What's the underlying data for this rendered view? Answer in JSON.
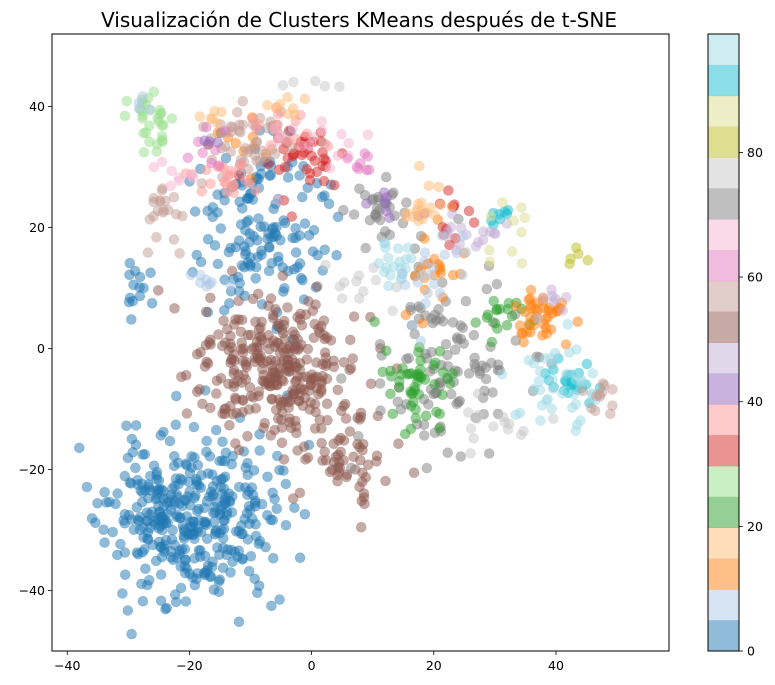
{
  "chart_data": {
    "type": "scatter",
    "title": "Visualización de Clusters KMeans después de t-SNE",
    "xlabel": "",
    "ylabel": "",
    "xlim": [
      -42.5,
      58.5
    ],
    "ylim": [
      -50,
      52
    ],
    "x_ticks": [
      -40,
      -20,
      0,
      20,
      40
    ],
    "y_ticks": [
      -40,
      -20,
      0,
      20,
      40
    ],
    "grid": false,
    "marker_alpha": 0.5,
    "colormap": "tab20",
    "colorbar": {
      "range": [
        0,
        99
      ],
      "ticks": [
        0,
        20,
        40,
        60,
        80
      ],
      "colors": [
        "#1f77b4",
        "#aec7e8",
        "#ff7f0e",
        "#ffbb78",
        "#2ca02c",
        "#98df8a",
        "#d62728",
        "#ff9896",
        "#9467bd",
        "#c5b0d5",
        "#8c564b",
        "#c49c94",
        "#e377c2",
        "#f7b6d2",
        "#7f7f7f",
        "#c7c7c7",
        "#bcbd22",
        "#dbdb8d",
        "#17becf",
        "#9edae5"
      ]
    },
    "clusters": [
      {
        "color_index": 0,
        "label_value": 0,
        "center": [
          -20,
          -28
        ],
        "spread": [
          9,
          9
        ],
        "count": 380,
        "seed": 11
      },
      {
        "color_index": 0,
        "label_value": 0,
        "center": [
          -8,
          20
        ],
        "spread": [
          7,
          9
        ],
        "count": 150,
        "seed": 12
      },
      {
        "color_index": 0,
        "label_value": 0,
        "center": [
          -29,
          10
        ],
        "spread": [
          1.5,
          2.5
        ],
        "count": 14,
        "seed": 13
      },
      {
        "color_index": 10,
        "label_value": 50,
        "center": [
          -6,
          -3
        ],
        "spread": [
          9,
          8
        ],
        "count": 300,
        "seed": 21
      },
      {
        "color_index": 10,
        "label_value": 50,
        "center": [
          5,
          -17
        ],
        "spread": [
          5,
          5
        ],
        "count": 60,
        "seed": 22
      },
      {
        "color_index": 14,
        "label_value": 70,
        "center": [
          22,
          -2
        ],
        "spread": [
          8,
          10
        ],
        "count": 110,
        "seed": 31
      },
      {
        "color_index": 14,
        "label_value": 70,
        "center": [
          12,
          23
        ],
        "spread": [
          4,
          3
        ],
        "count": 30,
        "seed": 32
      },
      {
        "color_index": 4,
        "label_value": 20,
        "center": [
          18,
          -6
        ],
        "spread": [
          4,
          5
        ],
        "count": 50,
        "seed": 41
      },
      {
        "color_index": 4,
        "label_value": 20,
        "center": [
          31,
          6
        ],
        "spread": [
          3,
          2
        ],
        "count": 18,
        "seed": 42
      },
      {
        "color_index": 2,
        "label_value": 10,
        "center": [
          37,
          5
        ],
        "spread": [
          3,
          3
        ],
        "count": 40,
        "seed": 51
      },
      {
        "color_index": 2,
        "label_value": 10,
        "center": [
          21,
          13
        ],
        "spread": [
          3,
          6
        ],
        "count": 20,
        "seed": 52
      },
      {
        "color_index": 2,
        "label_value": 10,
        "center": [
          -12,
          33
        ],
        "spread": [
          3,
          3
        ],
        "count": 10,
        "seed": 53
      },
      {
        "color_index": 6,
        "label_value": 30,
        "center": [
          -2,
          32
        ],
        "spread": [
          5,
          4
        ],
        "count": 40,
        "seed": 61
      },
      {
        "color_index": 6,
        "label_value": 30,
        "center": [
          22,
          22
        ],
        "spread": [
          3,
          4
        ],
        "count": 12,
        "seed": 62
      },
      {
        "color_index": 18,
        "label_value": 90,
        "center": [
          42,
          -5
        ],
        "spread": [
          3,
          3
        ],
        "count": 22,
        "seed": 71
      },
      {
        "color_index": 18,
        "label_value": 90,
        "center": [
          31,
          22
        ],
        "spread": [
          1.5,
          1
        ],
        "count": 8,
        "seed": 72
      },
      {
        "color_index": 19,
        "label_value": 95,
        "center": [
          40,
          -5
        ],
        "spread": [
          4,
          5
        ],
        "count": 40,
        "seed": 81
      },
      {
        "color_index": 19,
        "label_value": 95,
        "center": [
          14,
          14
        ],
        "spread": [
          3,
          3
        ],
        "count": 20,
        "seed": 82
      },
      {
        "color_index": 5,
        "label_value": 25,
        "center": [
          -27,
          38
        ],
        "spread": [
          3,
          3
        ],
        "count": 30,
        "seed": 91
      },
      {
        "color_index": 11,
        "label_value": 55,
        "center": [
          -10,
          34
        ],
        "spread": [
          5,
          4
        ],
        "count": 50,
        "seed": 101
      },
      {
        "color_index": 11,
        "label_value": 55,
        "center": [
          -24,
          22
        ],
        "spread": [
          3,
          4
        ],
        "count": 20,
        "seed": 102
      },
      {
        "color_index": 11,
        "label_value": 55,
        "center": [
          47,
          -9
        ],
        "spread": [
          2,
          2
        ],
        "count": 12,
        "seed": 103
      },
      {
        "color_index": 7,
        "label_value": 35,
        "center": [
          -14,
          29
        ],
        "spread": [
          4,
          2
        ],
        "count": 22,
        "seed": 111
      },
      {
        "color_index": 7,
        "label_value": 35,
        "center": [
          -4,
          37
        ],
        "spread": [
          5,
          3
        ],
        "count": 14,
        "seed": 112
      },
      {
        "color_index": 13,
        "label_value": 65,
        "center": [
          0,
          36
        ],
        "spread": [
          5,
          4
        ],
        "count": 16,
        "seed": 121
      },
      {
        "color_index": 13,
        "label_value": 65,
        "center": [
          -22,
          28
        ],
        "spread": [
          2,
          2
        ],
        "count": 8,
        "seed": 122
      },
      {
        "color_index": 12,
        "label_value": 60,
        "center": [
          -17,
          33
        ],
        "spread": [
          2,
          2
        ],
        "count": 8,
        "seed": 131
      },
      {
        "color_index": 12,
        "label_value": 60,
        "center": [
          8,
          31
        ],
        "spread": [
          2,
          2
        ],
        "count": 8,
        "seed": 132
      },
      {
        "color_index": 8,
        "label_value": 40,
        "center": [
          12,
          24
        ],
        "spread": [
          3,
          2
        ],
        "count": 8,
        "seed": 141
      },
      {
        "color_index": 8,
        "label_value": 40,
        "center": [
          -17,
          34
        ],
        "spread": [
          1,
          1
        ],
        "count": 4,
        "seed": 142
      },
      {
        "color_index": 9,
        "label_value": 45,
        "center": [
          24,
          19
        ],
        "spread": [
          4,
          2
        ],
        "count": 16,
        "seed": 151
      },
      {
        "color_index": 9,
        "label_value": 45,
        "center": [
          40,
          7
        ],
        "spread": [
          3,
          3
        ],
        "count": 8,
        "seed": 152
      },
      {
        "color_index": 3,
        "label_value": 15,
        "center": [
          18,
          23
        ],
        "spread": [
          3,
          3
        ],
        "count": 18,
        "seed": 161
      },
      {
        "color_index": 3,
        "label_value": 15,
        "center": [
          -4,
          40
        ],
        "spread": [
          3,
          1
        ],
        "count": 8,
        "seed": 162
      },
      {
        "color_index": 3,
        "label_value": 15,
        "center": [
          -16,
          38
        ],
        "spread": [
          2,
          1
        ],
        "count": 6,
        "seed": 163
      },
      {
        "color_index": 1,
        "label_value": 5,
        "center": [
          20,
          13
        ],
        "spread": [
          5,
          5
        ],
        "count": 20,
        "seed": 171
      },
      {
        "color_index": 1,
        "label_value": 5,
        "center": [
          -17,
          11
        ],
        "spread": [
          2,
          1
        ],
        "count": 8,
        "seed": 172
      },
      {
        "color_index": 1,
        "label_value": 5,
        "center": [
          -28,
          40
        ],
        "spread": [
          1,
          1
        ],
        "count": 4,
        "seed": 173
      },
      {
        "color_index": 15,
        "label_value": 75,
        "center": [
          30,
          -12
        ],
        "spread": [
          4,
          3
        ],
        "count": 15,
        "seed": 181
      },
      {
        "color_index": 15,
        "label_value": 75,
        "center": [
          7,
          10
        ],
        "spread": [
          4,
          4
        ],
        "count": 12,
        "seed": 182
      },
      {
        "color_index": 15,
        "label_value": 75,
        "center": [
          1,
          44
        ],
        "spread": [
          3,
          1
        ],
        "count": 5,
        "seed": 183
      },
      {
        "color_index": 16,
        "label_value": 80,
        "center": [
          43,
          15
        ],
        "spread": [
          2,
          2
        ],
        "count": 5,
        "seed": 191
      },
      {
        "color_index": 17,
        "label_value": 85,
        "center": [
          33,
          23
        ],
        "spread": [
          2,
          2
        ],
        "count": 5,
        "seed": 201
      },
      {
        "color_index": 17,
        "label_value": 85,
        "center": [
          30,
          18
        ],
        "spread": [
          3,
          3
        ],
        "count": 5,
        "seed": 202
      }
    ]
  }
}
